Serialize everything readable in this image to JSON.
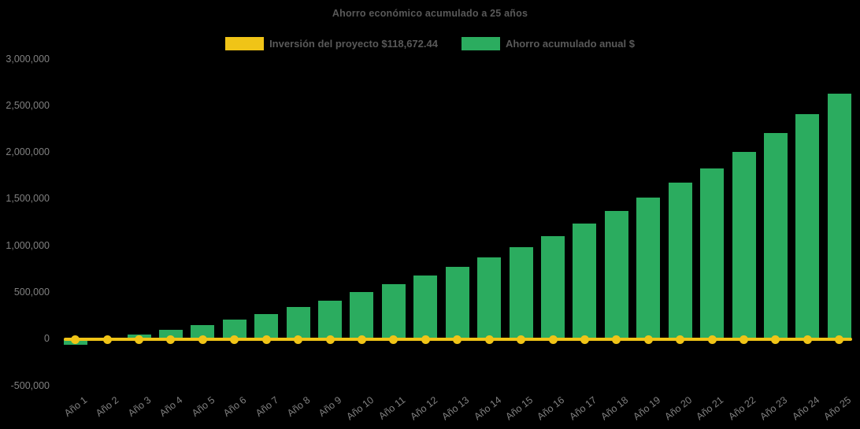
{
  "title": "Ahorro económico acumulado a 25 años",
  "legend": {
    "investment": {
      "label": "Inversión del proyecto $118,672.44",
      "color": "#F0C417"
    },
    "savings": {
      "label": "Ahorro acumulado anual $",
      "color": "#2BAC5F"
    }
  },
  "colors": {
    "background": "#000000",
    "bar": "#2BAC5F",
    "line": "#F0C417",
    "title_text": "#595959",
    "axis_text": "#808080"
  },
  "chart_data": {
    "type": "bar",
    "title": "Ahorro económico acumulado a 25 años",
    "categories": [
      "Año 1",
      "Año 2",
      "Año 3",
      "Año 4",
      "Año 5",
      "Año 6",
      "Año 7",
      "Año 8",
      "Año 9",
      "Año 10",
      "Año 11",
      "Año 12",
      "Año 13",
      "Año 14",
      "Año 15",
      "Año 16",
      "Año 17",
      "Año 18",
      "Año 19",
      "Año 20",
      "Año 21",
      "Año 22",
      "Año 23",
      "Año 24",
      "Año 25"
    ],
    "series": [
      {
        "name": "Ahorro acumulado anual $",
        "type": "bar",
        "color": "#2BAC5F",
        "values": [
          -58000,
          8000,
          45000,
          95000,
          148000,
          207000,
          271000,
          341000,
          415000,
          500000,
          585000,
          684000,
          775000,
          877000,
          988000,
          1100000,
          1234000,
          1375000,
          1513000,
          1672000,
          1831000,
          2007000,
          2208000,
          2409000,
          2627000
        ]
      },
      {
        "name": "Inversión del proyecto $118,672.44",
        "type": "line",
        "color": "#F0C417",
        "investment_value": 118672.44,
        "plotted_at": 0,
        "marker": "circle"
      }
    ],
    "xlabel": "",
    "ylabel": "",
    "ylim": [
      -500000,
      3000000
    ],
    "ytick_step": 500000,
    "ytick_labels": [
      "3,000,000",
      "2,500,000",
      "2,000,000",
      "1,500,000",
      "1,000,000",
      "500,000",
      "0",
      "-500,000"
    ],
    "grid": false,
    "legend_position": "top"
  }
}
